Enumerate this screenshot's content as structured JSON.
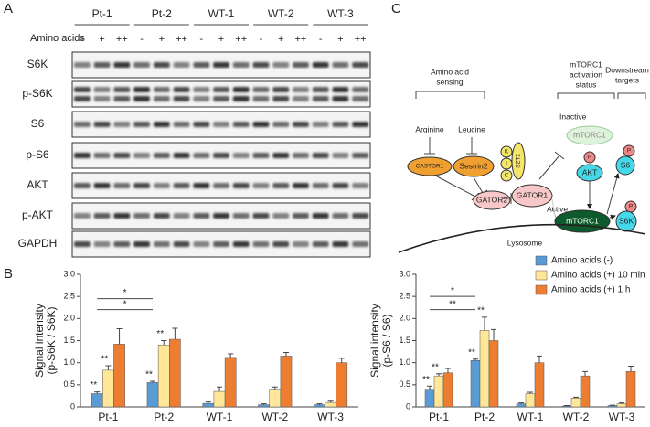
{
  "panel_a": {
    "label": "A",
    "row_label": "Amino acids",
    "groups": [
      "Pt-1",
      "Pt-2",
      "WT-1",
      "WT-2",
      "WT-3"
    ],
    "conditions": [
      "-",
      "+",
      "++"
    ],
    "blots": [
      "S6K",
      "p-S6K",
      "S6",
      "p-S6",
      "AKT",
      "p-AKT",
      "GAPDH"
    ]
  },
  "panel_b_label": "B",
  "chart_data": [
    {
      "type": "bar",
      "ylabel": [
        "Signal intensity",
        "(p-S6K / S6K)"
      ],
      "categories": [
        "Pt-1",
        "Pt-2",
        "WT-1",
        "WT-2",
        "WT-3"
      ],
      "ylim": [
        0,
        3
      ],
      "yticks": [
        0,
        0.5,
        {
          "value": 1,
          "label": "1.0"
        },
        1.5,
        {
          "value": 2,
          "label": "2.0"
        },
        2.5,
        {
          "value": 3,
          "label": "3.0"
        }
      ],
      "series": [
        {
          "color": "#5b9bd5",
          "values": [
            0.3,
            0.55,
            0.08,
            0.05,
            0.05
          ],
          "errors": [
            0.04,
            0.03,
            0.03,
            0.02,
            0.02
          ],
          "value_annotations": [
            "**",
            "**",
            null,
            null,
            null
          ]
        },
        {
          "color": "#ffe699",
          "values": [
            0.83,
            1.4,
            0.35,
            0.4,
            0.1
          ],
          "errors": [
            0.1,
            0.1,
            0.1,
            0.05,
            0.03
          ],
          "value_annotations": [
            "**",
            "**",
            null,
            null,
            null
          ]
        },
        {
          "color": "#ed7d31",
          "values": [
            1.42,
            1.53,
            1.12,
            1.15,
            1.0
          ],
          "errors": [
            0.35,
            0.25,
            0.08,
            0.08,
            0.1
          ]
        }
      ],
      "comparisons": [
        {
          "label": "*",
          "y": 2.2,
          "between": [
            "Pt-1",
            "Pt-2"
          ]
        },
        {
          "label": "*",
          "y": 2.45,
          "between": [
            "Pt-1",
            "Pt-2"
          ]
        }
      ]
    },
    {
      "type": "bar",
      "ylabel": [
        "Signal intensity",
        "(p-S6 / S6)"
      ],
      "categories": [
        "Pt-1",
        "Pt-2",
        "WT-1",
        "WT-2",
        "WT-3"
      ],
      "ylim": [
        0,
        3
      ],
      "yticks": [
        0,
        0.5,
        {
          "value": 1,
          "label": "1.0"
        },
        1.5,
        {
          "value": 2,
          "label": "2.0"
        },
        2.5,
        {
          "value": 3,
          "label": "3.0"
        }
      ],
      "legend": true,
      "series": [
        {
          "name": "Amino acids (-)",
          "color": "#5b9bd5",
          "values": [
            0.4,
            1.05,
            0.07,
            0.02,
            0.03
          ],
          "errors": [
            0.07,
            0.03,
            0.02,
            0.01,
            0.01
          ],
          "value_annotations": [
            "**",
            "**",
            null,
            null,
            null
          ]
        },
        {
          "name": "Amino acids (+) 10 min",
          "color": "#ffe699",
          "values": [
            0.7,
            1.73,
            0.3,
            0.2,
            0.07
          ],
          "errors": [
            0.05,
            0.3,
            0.03,
            0.02,
            0.02
          ],
          "value_annotations": [
            "**",
            "**",
            null,
            null,
            null
          ]
        },
        {
          "name": "Amino acids (+) 1 h",
          "color": "#ed7d31",
          "values": [
            0.77,
            1.5,
            1.0,
            0.7,
            0.8
          ],
          "errors": [
            0.1,
            0.25,
            0.15,
            0.1,
            0.12
          ]
        }
      ],
      "comparisons": [
        {
          "label": "**",
          "y": 2.2,
          "between": [
            "Pt-1",
            "Pt-2"
          ]
        },
        {
          "label": "*",
          "y": 2.5,
          "between": [
            "Pt-1",
            "Pt-2"
          ]
        }
      ]
    }
  ],
  "panel_c": {
    "label": "C",
    "sensing": [
      "Amino acid",
      "sensing"
    ],
    "status": [
      "mTORC1",
      "activation",
      "status"
    ],
    "targets": [
      "Downstream",
      "targets"
    ],
    "arginine": "Arginine",
    "leucine": "Leucine",
    "castor1": "CASTOR1",
    "sestrin2": "Sestrin2",
    "gator2": "GATOR2",
    "gator1": "GATOR1",
    "kicstor": [
      "K",
      "I",
      "C"
    ],
    "szt2": "SZT2",
    "inactive": "Inactive",
    "mtorc1_inactive": "mTORC1",
    "active": "Active",
    "mtorc1_active": "mTORC1",
    "phospho": "P",
    "akt": "AKT",
    "s6": "S6",
    "s6k": "S6K",
    "lysosome": "Lysosome"
  }
}
